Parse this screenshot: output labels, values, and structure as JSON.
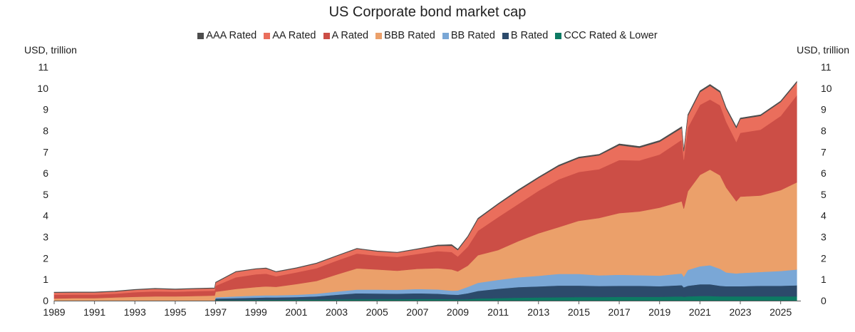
{
  "chart_data": {
    "type": "area",
    "stacked": true,
    "title": "US Corporate bond market cap",
    "ylabel_left": "USD, trillion",
    "ylabel_right": "USD, trillion",
    "ylim": [
      0,
      11
    ],
    "xlim": [
      1989,
      2026
    ],
    "yticks": [
      0,
      1,
      2,
      3,
      4,
      5,
      6,
      7,
      8,
      9,
      10,
      11
    ],
    "xticks": [
      1989,
      1991,
      1993,
      1995,
      1997,
      1999,
      2001,
      2003,
      2005,
      2007,
      2009,
      2011,
      2013,
      2015,
      2017,
      2019,
      2021,
      2023,
      2025
    ],
    "legend_position": "top-center",
    "grid": false,
    "x": [
      1989.0,
      1990.0,
      1991.0,
      1992.0,
      1993.0,
      1994.0,
      1995.0,
      1996.0,
      1996.95,
      1997.0,
      1998.0,
      1999.0,
      1999.5,
      2000.0,
      2001.0,
      2002.0,
      2003.0,
      2004.0,
      2005.0,
      2006.0,
      2007.0,
      2008.0,
      2008.7,
      2009.0,
      2009.5,
      2010.0,
      2011.0,
      2012.0,
      2013.0,
      2014.0,
      2015.0,
      2016.0,
      2017.0,
      2018.0,
      2019.0,
      2020.1,
      2020.2,
      2020.4,
      2021.0,
      2021.5,
      2022.0,
      2022.3,
      2022.8,
      2023.0,
      2024.0,
      2025.0,
      2025.8
    ],
    "series": [
      {
        "name": "CCC Rated & Lower",
        "color": "#0d7a63",
        "values": [
          0.0,
          0.0,
          0.0,
          0.0,
          0.0,
          0.0,
          0.0,
          0.0,
          0.0,
          0.03,
          0.03,
          0.04,
          0.04,
          0.04,
          0.05,
          0.05,
          0.06,
          0.07,
          0.07,
          0.07,
          0.08,
          0.08,
          0.07,
          0.06,
          0.07,
          0.1,
          0.12,
          0.14,
          0.15,
          0.16,
          0.17,
          0.17,
          0.18,
          0.18,
          0.18,
          0.2,
          0.18,
          0.2,
          0.22,
          0.22,
          0.2,
          0.2,
          0.2,
          0.2,
          0.2,
          0.2,
          0.2
        ]
      },
      {
        "name": "B Rated",
        "color": "#2c4a6b",
        "values": [
          0.0,
          0.0,
          0.0,
          0.0,
          0.0,
          0.0,
          0.0,
          0.0,
          0.0,
          0.07,
          0.09,
          0.1,
          0.11,
          0.11,
          0.12,
          0.15,
          0.22,
          0.28,
          0.27,
          0.26,
          0.27,
          0.25,
          0.22,
          0.22,
          0.28,
          0.36,
          0.44,
          0.5,
          0.52,
          0.55,
          0.54,
          0.52,
          0.52,
          0.52,
          0.5,
          0.53,
          0.45,
          0.5,
          0.55,
          0.55,
          0.5,
          0.48,
          0.48,
          0.48,
          0.5,
          0.5,
          0.52
        ]
      },
      {
        "name": "BB Rated",
        "color": "#7aa7d6",
        "values": [
          0.0,
          0.0,
          0.0,
          0.0,
          0.0,
          0.0,
          0.0,
          0.0,
          0.0,
          0.06,
          0.08,
          0.1,
          0.1,
          0.1,
          0.11,
          0.13,
          0.15,
          0.17,
          0.18,
          0.18,
          0.2,
          0.2,
          0.18,
          0.2,
          0.3,
          0.38,
          0.42,
          0.46,
          0.5,
          0.55,
          0.55,
          0.5,
          0.52,
          0.5,
          0.5,
          0.55,
          0.5,
          0.75,
          0.85,
          0.9,
          0.8,
          0.65,
          0.6,
          0.62,
          0.65,
          0.7,
          0.75
        ]
      },
      {
        "name": "BBB Rated",
        "color": "#eba06a",
        "values": [
          0.1,
          0.12,
          0.12,
          0.15,
          0.18,
          0.2,
          0.2,
          0.22,
          0.24,
          0.26,
          0.35,
          0.4,
          0.42,
          0.4,
          0.5,
          0.6,
          0.8,
          1.0,
          0.95,
          0.9,
          0.95,
          1.0,
          1.0,
          0.9,
          1.0,
          1.3,
          1.4,
          1.7,
          2.0,
          2.2,
          2.5,
          2.7,
          2.9,
          3.0,
          3.2,
          3.4,
          3.2,
          3.7,
          4.3,
          4.5,
          4.4,
          4.0,
          3.4,
          3.6,
          3.6,
          3.8,
          4.1
        ]
      },
      {
        "name": "A Rated",
        "color": "#cc4e46",
        "values": [
          0.18,
          0.17,
          0.17,
          0.18,
          0.22,
          0.24,
          0.22,
          0.23,
          0.23,
          0.28,
          0.55,
          0.6,
          0.6,
          0.5,
          0.55,
          0.6,
          0.65,
          0.7,
          0.65,
          0.65,
          0.7,
          0.8,
          0.82,
          0.7,
          0.9,
          1.15,
          1.55,
          1.75,
          2.0,
          2.25,
          2.3,
          2.3,
          2.5,
          2.4,
          2.5,
          2.9,
          2.3,
          3.0,
          3.3,
          3.3,
          3.3,
          3.1,
          2.8,
          3.0,
          3.1,
          3.5,
          4.1
        ]
      },
      {
        "name": "AA Rated",
        "color": "#ea6e5c",
        "values": [
          0.1,
          0.1,
          0.1,
          0.1,
          0.11,
          0.12,
          0.11,
          0.11,
          0.11,
          0.15,
          0.25,
          0.25,
          0.25,
          0.2,
          0.2,
          0.22,
          0.22,
          0.22,
          0.2,
          0.2,
          0.22,
          0.25,
          0.3,
          0.3,
          0.45,
          0.55,
          0.6,
          0.62,
          0.6,
          0.62,
          0.65,
          0.65,
          0.7,
          0.6,
          0.6,
          0.55,
          0.4,
          0.55,
          0.6,
          0.65,
          0.6,
          0.6,
          0.65,
          0.65,
          0.65,
          0.65,
          0.6
        ]
      },
      {
        "name": "AAA Rated",
        "color": "#4d4d4d",
        "values": [
          0.02,
          0.02,
          0.02,
          0.02,
          0.02,
          0.02,
          0.02,
          0.02,
          0.02,
          0.02,
          0.02,
          0.02,
          0.02,
          0.02,
          0.02,
          0.02,
          0.02,
          0.02,
          0.02,
          0.02,
          0.02,
          0.04,
          0.05,
          0.04,
          0.04,
          0.04,
          0.04,
          0.05,
          0.05,
          0.05,
          0.05,
          0.05,
          0.06,
          0.06,
          0.06,
          0.06,
          0.05,
          0.06,
          0.06,
          0.06,
          0.06,
          0.06,
          0.06,
          0.05,
          0.05,
          0.05,
          0.05
        ]
      }
    ]
  },
  "legend": [
    {
      "label": "AAA Rated",
      "color": "#4d4d4d"
    },
    {
      "label": "AA Rated",
      "color": "#ea6e5c"
    },
    {
      "label": "A Rated",
      "color": "#cc4e46"
    },
    {
      "label": "BBB Rated",
      "color": "#eba06a"
    },
    {
      "label": "BB Rated",
      "color": "#7aa7d6"
    },
    {
      "label": "B Rated",
      "color": "#2c4a6b"
    },
    {
      "label": "CCC Rated & Lower",
      "color": "#0d7a63"
    }
  ]
}
